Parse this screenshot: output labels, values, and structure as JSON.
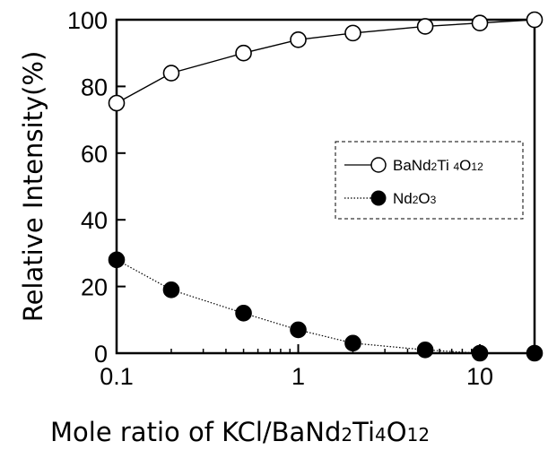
{
  "chart_data": {
    "type": "line",
    "xscale": "log",
    "x_ticks": [
      {
        "value": 0.1,
        "label": "0.1"
      },
      {
        "value": 1,
        "label": "1"
      },
      {
        "value": 10,
        "label": "10"
      }
    ],
    "y_ticks": [
      {
        "value": 0,
        "label": "0"
      },
      {
        "value": 20,
        "label": "20"
      },
      {
        "value": 40,
        "label": "40"
      },
      {
        "value": 60,
        "label": "60"
      },
      {
        "value": 80,
        "label": "80"
      },
      {
        "value": 100,
        "label": "100"
      }
    ],
    "xlim": [
      0.1,
      20
    ],
    "ylim": [
      0,
      100
    ],
    "ylabel": "Relative Intensity(%)",
    "xlabel": {
      "prefix": "Mole ratio of KCl/BaNd",
      "sub1": "2",
      "mid": "Ti",
      "sub2": "4",
      "o": "O",
      "sub3": "12"
    },
    "legend": {
      "placement": "right",
      "border": "dashed"
    },
    "series": [
      {
        "name": "BaNd2Ti4O12",
        "name_parts": {
          "a": "BaNd",
          "b": "2",
          "c": "Ti ",
          "d": "4",
          "e": "O",
          "f": "12"
        },
        "marker": "open-circle",
        "line": "solid",
        "x": [
          0.1,
          0.2,
          0.5,
          1,
          2,
          5,
          10,
          20
        ],
        "y": [
          75,
          84,
          90,
          94,
          96,
          98,
          99,
          100
        ]
      },
      {
        "name": "Nd2O3",
        "name_parts": {
          "a": "Nd",
          "b": "2",
          "c": "O",
          "d": "3"
        },
        "marker": "filled-circle",
        "line": "dotted",
        "x": [
          0.1,
          0.2,
          0.5,
          1,
          2,
          5,
          10,
          20
        ],
        "y": [
          28,
          19,
          12,
          7,
          3,
          1,
          0,
          0
        ]
      }
    ]
  }
}
